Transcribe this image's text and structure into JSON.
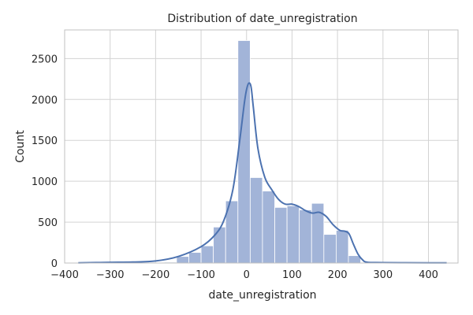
{
  "chart_data": {
    "type": "bar",
    "title": "Distribution of date_unregistration",
    "xlabel": "date_unregistration",
    "ylabel": "Count",
    "xlim": [
      -400,
      465
    ],
    "ylim": [
      0,
      2850
    ],
    "xticks": [
      -400,
      -300,
      -200,
      -100,
      0,
      100,
      200,
      300,
      400
    ],
    "yticks": [
      0,
      500,
      1000,
      1500,
      2000,
      2500
    ],
    "grid": true,
    "colors": {
      "bar_fill": "#a2b4d8",
      "kde_line": "#4c72b0",
      "grid": "#d3d3d3",
      "spine": "#c0c0c0"
    },
    "bins": [
      {
        "x0": -370,
        "x1": -343,
        "count": 5
      },
      {
        "x0": -343,
        "x1": -316,
        "count": 5
      },
      {
        "x0": -316,
        "x1": -289,
        "count": 5
      },
      {
        "x0": -289,
        "x1": -262,
        "count": 5
      },
      {
        "x0": -262,
        "x1": -235,
        "count": 5
      },
      {
        "x0": -235,
        "x1": -208,
        "count": 5
      },
      {
        "x0": -208,
        "x1": -181,
        "count": 5
      },
      {
        "x0": -181,
        "x1": -154,
        "count": 10
      },
      {
        "x0": -154,
        "x1": -127,
        "count": 80
      },
      {
        "x0": -127,
        "x1": -100,
        "count": 130
      },
      {
        "x0": -100,
        "x1": -73,
        "count": 210
      },
      {
        "x0": -73,
        "x1": -46,
        "count": 440
      },
      {
        "x0": -46,
        "x1": -19,
        "count": 760
      },
      {
        "x0": -19,
        "x1": 8,
        "count": 2720
      },
      {
        "x0": 8,
        "x1": 35,
        "count": 1045
      },
      {
        "x0": 35,
        "x1": 62,
        "count": 880
      },
      {
        "x0": 62,
        "x1": 89,
        "count": 680
      },
      {
        "x0": 89,
        "x1": 116,
        "count": 700
      },
      {
        "x0": 116,
        "x1": 143,
        "count": 650
      },
      {
        "x0": 143,
        "x1": 170,
        "count": 730
      },
      {
        "x0": 170,
        "x1": 197,
        "count": 350
      },
      {
        "x0": 197,
        "x1": 224,
        "count": 400
      },
      {
        "x0": 224,
        "x1": 251,
        "count": 90
      },
      {
        "x0": 251,
        "x1": 278,
        "count": 5
      },
      {
        "x0": 278,
        "x1": 305,
        "count": 5
      },
      {
        "x0": 305,
        "x1": 332,
        "count": 5
      },
      {
        "x0": 332,
        "x1": 359,
        "count": 5
      },
      {
        "x0": 359,
        "x1": 386,
        "count": 5
      },
      {
        "x0": 386,
        "x1": 413,
        "count": 5
      },
      {
        "x0": 413,
        "x1": 440,
        "count": 5
      }
    ],
    "kde": {
      "x": [
        -370,
        -300,
        -250,
        -200,
        -150,
        -100,
        -70,
        -50,
        -30,
        -15,
        -5,
        0,
        5,
        10,
        15,
        25,
        40,
        55,
        70,
        85,
        100,
        115,
        130,
        145,
        160,
        175,
        190,
        205,
        215,
        225,
        235,
        245,
        255,
        265,
        300,
        400,
        440
      ],
      "y": [
        3,
        8,
        12,
        25,
        80,
        200,
        340,
        520,
        900,
        1500,
        1950,
        2120,
        2200,
        2150,
        1900,
        1400,
        1050,
        900,
        780,
        720,
        720,
        690,
        640,
        610,
        620,
        570,
        470,
        400,
        390,
        360,
        230,
        110,
        40,
        10,
        5,
        3,
        2
      ]
    }
  }
}
